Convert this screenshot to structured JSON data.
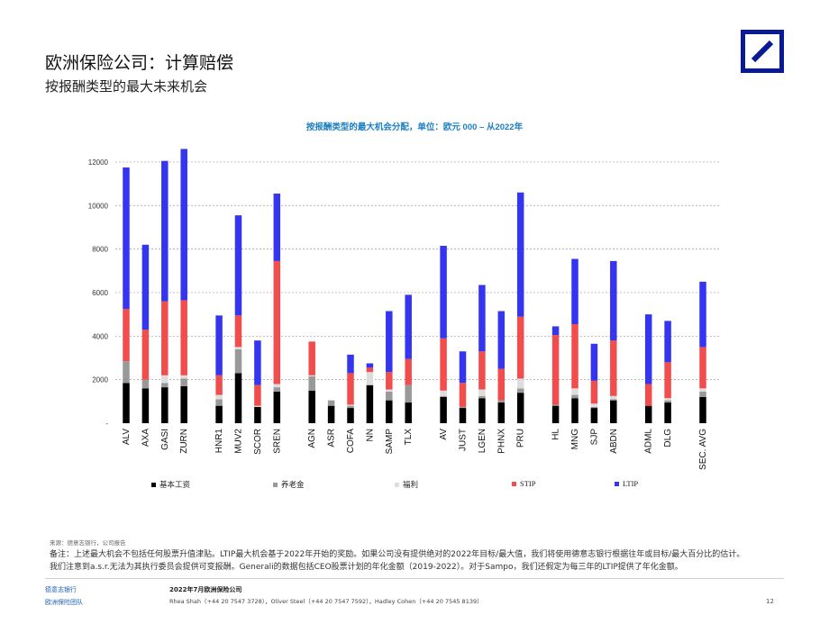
{
  "header": {
    "title": "欧洲保险公司：计算赔偿",
    "subtitle": "按报酬类型的最大未来机会"
  },
  "chart_data": {
    "type": "bar",
    "stacked": true,
    "title": "按报酬类型的最大机会分配，单位：欧元 000 – 从2022年",
    "xlabel": "",
    "ylabel": "",
    "ylim": [
      0,
      12700
    ],
    "yticks": [
      0,
      2000,
      4000,
      6000,
      8000,
      10000,
      12000
    ],
    "ytick_labels": [
      "-",
      "2000",
      "4000",
      "6000",
      "8000",
      "10000",
      "12000"
    ],
    "grid": true,
    "legend_position": "bottom",
    "groups": [
      [
        "ALV",
        "AXA",
        "GASI",
        "ZURN"
      ],
      [
        "HNR1",
        "MUV2",
        "SCOR",
        "SREN"
      ],
      [
        "AGN",
        "ASR",
        "COFA",
        "NN",
        "SAMP",
        "TLX"
      ],
      [
        "AV",
        "JUST",
        "LGEN",
        "PHNX",
        "PRU"
      ],
      [
        "HL",
        "MNG",
        "SJP",
        "ABDN"
      ],
      [
        "ADML",
        "DLG"
      ],
      [
        "SEC. AVG"
      ]
    ],
    "categories": [
      "ALV",
      "AXA",
      "GASI",
      "ZURN",
      "HNR1",
      "MUV2",
      "SCOR",
      "SREN",
      "AGN",
      "ASR",
      "COFA",
      "NN",
      "SAMP",
      "TLX",
      "AV",
      "JUST",
      "LGEN",
      "PHNX",
      "PRU",
      "HL",
      "MNG",
      "SJP",
      "ABDN",
      "ADML",
      "DLG",
      "SEC. AVG"
    ],
    "series": [
      {
        "name": "基本工资",
        "color": "#000000",
        "values": [
          1850,
          1600,
          1650,
          1700,
          800,
          2300,
          750,
          1450,
          1500,
          800,
          700,
          1750,
          1050,
          950,
          1200,
          700,
          1150,
          950,
          1400,
          800,
          1150,
          700,
          1050,
          800,
          950,
          1200
        ]
      },
      {
        "name": "养老金",
        "color": "#999999",
        "values": [
          1000,
          400,
          200,
          350,
          300,
          1100,
          0,
          200,
          650,
          250,
          100,
          0,
          400,
          800,
          50,
          50,
          100,
          100,
          200,
          50,
          150,
          50,
          50,
          0,
          100,
          250
        ]
      },
      {
        "name": "福利",
        "color": "#dddddd",
        "values": [
          0,
          0,
          350,
          150,
          200,
          100,
          50,
          150,
          50,
          0,
          50,
          600,
          100,
          0,
          250,
          0,
          300,
          0,
          450,
          0,
          300,
          150,
          150,
          0,
          100,
          150
        ]
      },
      {
        "name": "STIP",
        "color": "#f14d4d",
        "values": [
          2400,
          2300,
          3400,
          3450,
          900,
          1450,
          950,
          5650,
          1550,
          0,
          1450,
          200,
          800,
          1200,
          2400,
          1100,
          1750,
          1450,
          2850,
          3200,
          2950,
          1050,
          2550,
          1000,
          1650,
          1900
        ]
      },
      {
        "name": "LTIP",
        "color": "#3535f0",
        "values": [
          6500,
          3900,
          6450,
          6950,
          2750,
          4600,
          2050,
          3100,
          0,
          0,
          850,
          200,
          2800,
          2950,
          4250,
          1450,
          3050,
          2650,
          5700,
          400,
          3000,
          1700,
          3650,
          3200,
          1900,
          3000
        ]
      }
    ],
    "legend_labels": [
      "基本工资",
      "养老金",
      "福利",
      "STIP",
      "LTIP"
    ]
  },
  "notes": {
    "source": "来源：德意志银行，公司报告",
    "note1": "备注：上述最大机会不包括任何股票升值津贴。LTIP最大机会基于2022年开始的奖励。如果公司没有提供绝对的2022年目标/最大值，我们将使用德意志银行根据往年或目标/最大百分比的估计。",
    "note2": "我们注意到a.s.r.无法为其执行委员会提供可变报酬。Generali的数据包括CEO股票计划的年化金额（2019-2022）。对于Sampo，我们还假定为每三年的LTIP提供了年化金额。"
  },
  "footer": {
    "bank": "德意志银行",
    "team": "欧洲保险团队",
    "date": "2022年7月欧洲保险公司",
    "contacts": "Rhea Shah（+44 20 7547 3728），Oliver Steel（+44 20 7547 7592），Hadley Cohen（+44 20 7545 8139）",
    "page": "12"
  }
}
